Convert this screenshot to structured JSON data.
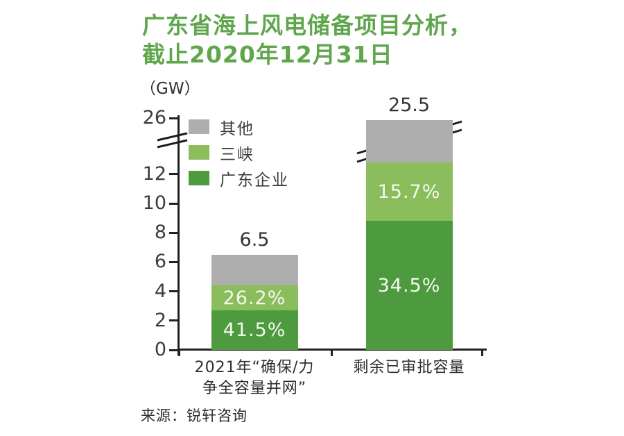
{
  "header": {
    "title_line1": "广东省海上风电储备项目分析，",
    "title_line2": "截止2020年12月31日",
    "unit": "（GW）"
  },
  "source": {
    "label": "来源：锐轩咨询"
  },
  "colors": {
    "title_green": "#5fa64d",
    "dark_green": "#4d9b3e",
    "light_green": "#8cbd5c",
    "gray": "#aeaeae",
    "axis": "#222222",
    "percent_text": "#f4f8ef"
  },
  "chart_data": {
    "type": "bar",
    "stacked": true,
    "title": "广东省海上风电储备项目分析，截止2020年12月31日",
    "ylabel": "（GW）",
    "yticks": [
      0,
      2,
      4,
      6,
      8,
      10,
      12,
      26
    ],
    "ylim": [
      0,
      26
    ],
    "axis_break": true,
    "grid": false,
    "legend_position": "top-left-inside",
    "categories": [
      [
        "2021年“确保/力",
        "争全容量并网”"
      ],
      [
        "剩余已审批容量"
      ]
    ],
    "totals": [
      6.5,
      25.5
    ],
    "series": [
      {
        "name": "广东企业",
        "color": "#4d9b3e",
        "pcts": [
          41.5,
          34.5
        ]
      },
      {
        "name": "三峡",
        "color": "#8cbd5c",
        "pcts": [
          26.2,
          15.7
        ]
      },
      {
        "name": "其他",
        "color": "#aeaeae",
        "pcts": [
          null,
          null
        ]
      }
    ],
    "legend_order": [
      "其他",
      "三峡",
      "广东企业"
    ]
  }
}
